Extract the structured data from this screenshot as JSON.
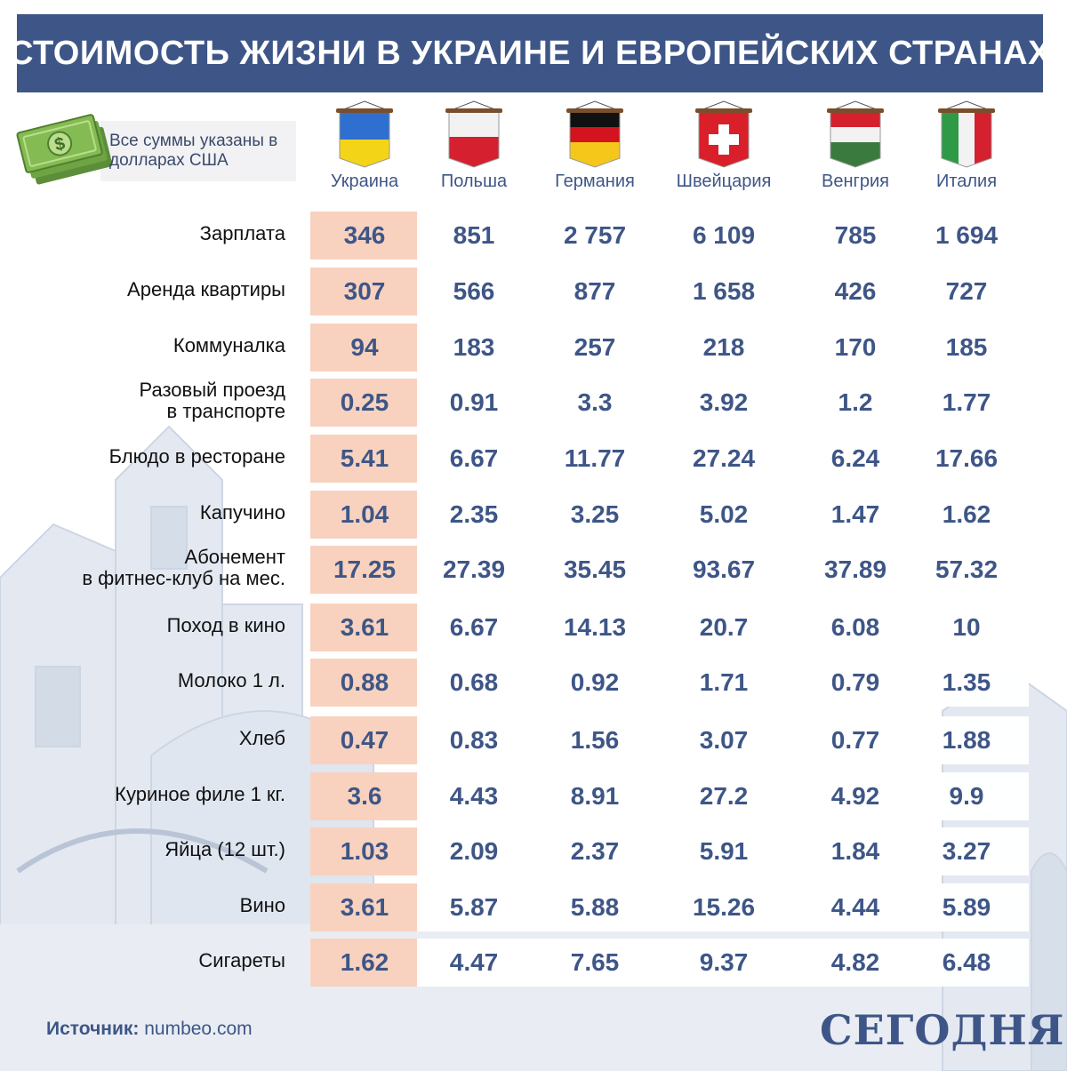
{
  "title": "СТОИМОСТЬ ЖИЗНИ В УКРАИНЕ И ЕВРОПЕЙСКИХ СТРАНАХ",
  "note": "Все суммы указаны в долларах США",
  "source_label": "Источник:",
  "source_value": "numbeo.com",
  "logo": "СЕГОДНЯ",
  "icons": {
    "money": "money-banknotes-icon"
  },
  "colors": {
    "header": "#3e5687",
    "highlight": "#f8d2bf",
    "value": "#3e5687"
  },
  "countries": [
    {
      "name": "Украина",
      "flag": "ukraine-flag-icon"
    },
    {
      "name": "Польша",
      "flag": "poland-flag-icon"
    },
    {
      "name": "Германия",
      "flag": "germany-flag-icon"
    },
    {
      "name": "Швейцария",
      "flag": "switzerland-flag-icon"
    },
    {
      "name": "Венгрия",
      "flag": "hungary-flag-icon"
    },
    {
      "name": "Италия",
      "flag": "italy-flag-icon"
    }
  ],
  "chart_data": {
    "type": "table",
    "columns": [
      "Украина",
      "Польша",
      "Германия",
      "Швейцария",
      "Венгрия",
      "Италия"
    ],
    "rows": [
      {
        "label": [
          "Зарплата"
        ],
        "values": [
          "346",
          "851",
          "2 757",
          "6 109",
          "785",
          "1 694"
        ]
      },
      {
        "label": [
          "Аренда квартиры"
        ],
        "values": [
          "307",
          "566",
          "877",
          "1 658",
          "426",
          "727"
        ]
      },
      {
        "label": [
          "Коммуналка"
        ],
        "values": [
          "94",
          "183",
          "257",
          "218",
          "170",
          "185"
        ]
      },
      {
        "label": [
          "Разовый проезд",
          "в транспорте"
        ],
        "values": [
          "0.25",
          "0.91",
          "3.3",
          "3.92",
          "1.2",
          "1.77"
        ]
      },
      {
        "label": [
          "Блюдо в ресторане"
        ],
        "values": [
          "5.41",
          "6.67",
          "11.77",
          "27.24",
          "6.24",
          "17.66"
        ]
      },
      {
        "label": [
          "Капучино"
        ],
        "values": [
          "1.04",
          "2.35",
          "3.25",
          "5.02",
          "1.47",
          "1.62"
        ]
      },
      {
        "label": [
          "Абонемент",
          "в фитнес-клуб на мес."
        ],
        "values": [
          "17.25",
          "27.39",
          "35.45",
          "93.67",
          "37.89",
          "57.32"
        ]
      },
      {
        "label": [
          "Поход в кино"
        ],
        "values": [
          "3.61",
          "6.67",
          "14.13",
          "20.7",
          "6.08",
          "10"
        ]
      },
      {
        "label": [
          "Молоко 1 л."
        ],
        "values": [
          "0.88",
          "0.68",
          "0.92",
          "1.71",
          "0.79",
          "1.35"
        ]
      },
      {
        "label": [
          "Хлеб"
        ],
        "values": [
          "0.47",
          "0.83",
          "1.56",
          "3.07",
          "0.77",
          "1.88"
        ]
      },
      {
        "label": [
          "Куриное филе 1 кг."
        ],
        "values": [
          "3.6",
          "4.43",
          "8.91",
          "27.2",
          "4.92",
          "9.9"
        ]
      },
      {
        "label": [
          "Яйца (12 шт.)"
        ],
        "values": [
          "1.03",
          "2.09",
          "2.37",
          "5.91",
          "1.84",
          "3.27"
        ]
      },
      {
        "label": [
          "Вино"
        ],
        "values": [
          "3.61",
          "5.87",
          "5.88",
          "15.26",
          "4.44",
          "5.89"
        ]
      },
      {
        "label": [
          "Сигареты"
        ],
        "values": [
          "1.62",
          "4.47",
          "7.65",
          "9.37",
          "4.82",
          "6.48"
        ]
      }
    ]
  }
}
